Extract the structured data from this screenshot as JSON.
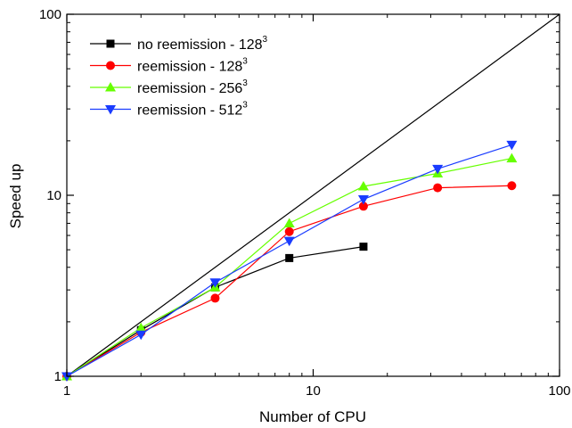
{
  "chart_data": {
    "type": "line",
    "xlabel": "Number of CPU",
    "ylabel": "Speed up",
    "xscale": "log",
    "yscale": "log",
    "xlim": [
      1,
      100
    ],
    "ylim": [
      1,
      100
    ],
    "x_ticks": [
      {
        "value": 1,
        "label": "1"
      },
      {
        "value": 10,
        "label": "10"
      },
      {
        "value": 100,
        "label": "100"
      }
    ],
    "y_ticks": [
      {
        "value": 1,
        "label": "1"
      },
      {
        "value": 10,
        "label": "10"
      },
      {
        "value": 100,
        "label": "100"
      }
    ],
    "legend_position": "top-left",
    "reference_line": {
      "x": [
        1,
        100
      ],
      "y": [
        1,
        100
      ],
      "color": "#000000"
    },
    "series": [
      {
        "name": "no reemission - 128",
        "name_superscript": "3",
        "color": "#000000",
        "marker": "square",
        "x": [
          1,
          2,
          4,
          8,
          16
        ],
        "y": [
          1.0,
          1.8,
          3.1,
          4.5,
          5.2
        ]
      },
      {
        "name": "reemission - 128",
        "name_superscript": "3",
        "color": "#ff0000",
        "marker": "circle",
        "x": [
          1,
          2,
          4,
          8,
          16,
          32,
          64
        ],
        "y": [
          1.0,
          1.75,
          2.7,
          6.3,
          8.7,
          11.0,
          11.3
        ]
      },
      {
        "name": "reemission - 256",
        "name_superscript": "3",
        "color": "#66ff00",
        "marker": "triangle-up",
        "x": [
          1,
          2,
          4,
          8,
          16,
          32,
          64
        ],
        "y": [
          1.0,
          1.85,
          3.1,
          7.0,
          11.2,
          13.2,
          16.0
        ]
      },
      {
        "name": "reemission - 512",
        "name_superscript": "3",
        "color": "#1a3cff",
        "marker": "triangle-down",
        "x": [
          1,
          2,
          4,
          8,
          16,
          32,
          64
        ],
        "y": [
          1.0,
          1.7,
          3.3,
          5.6,
          9.5,
          14.0,
          19.0
        ]
      }
    ]
  }
}
